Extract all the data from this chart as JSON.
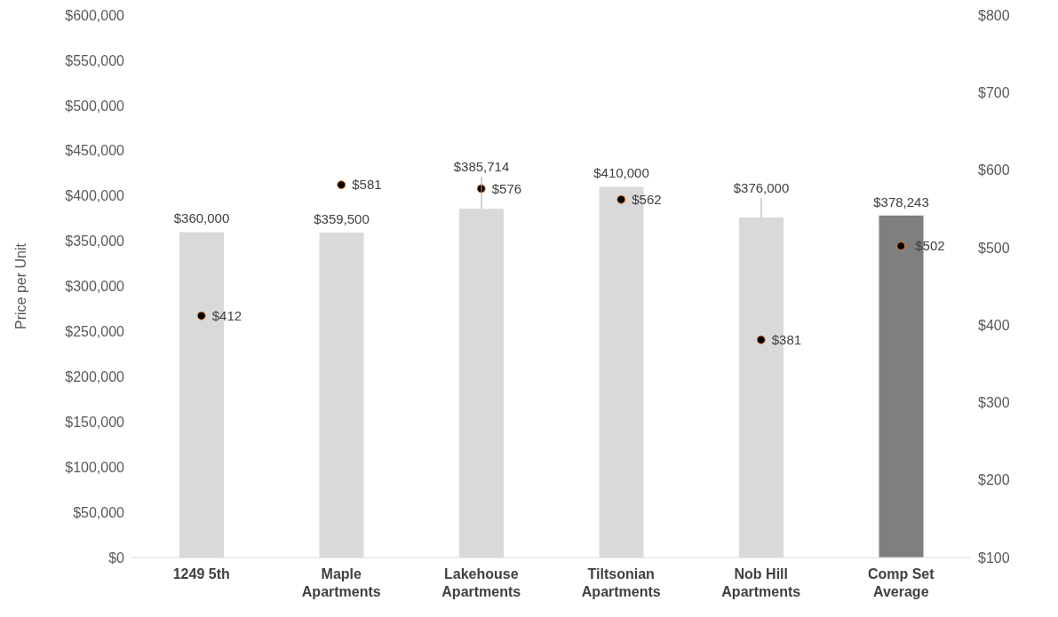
{
  "chart_data": {
    "type": "bar",
    "ylabel": "Price per Unit",
    "categories": [
      "1249 5th",
      "Maple Apartments",
      "Lakehouse Apartments",
      "Tiltsonian Apartments",
      "Nob Hill Apartments",
      "Comp Set Average"
    ],
    "series": [
      {
        "colors": [
          "#d9d9d9",
          "#d9d9d9",
          "#d9d9d9",
          "#d9d9d9",
          "#d9d9d9",
          "#7f7f7f"
        ],
        "values": [
          360000,
          359500,
          385714,
          410000,
          376000,
          378243
        ],
        "value_labels": [
          "$360,000",
          "$359,500",
          "$385,714",
          "$410,000",
          "$376,000",
          "$378,243"
        ]
      },
      {
        "type": "scatter",
        "axis": "y2",
        "color": "#000000",
        "values": [
          412,
          581,
          576,
          562,
          381,
          502
        ],
        "value_labels": [
          "$412",
          "$581",
          "$576",
          "$562",
          "$381",
          "$502"
        ]
      }
    ],
    "ylim": [
      0,
      600000
    ],
    "yticks": [
      {
        "value": 0,
        "label": "$0"
      },
      {
        "value": 50000,
        "label": "$50,000"
      },
      {
        "value": 100000,
        "label": "$100,000"
      },
      {
        "value": 150000,
        "label": "$150,000"
      },
      {
        "value": 200000,
        "label": "$200,000"
      },
      {
        "value": 250000,
        "label": "$250,000"
      },
      {
        "value": 300000,
        "label": "$300,000"
      },
      {
        "value": 350000,
        "label": "$350,000"
      },
      {
        "value": 400000,
        "label": "$400,000"
      },
      {
        "value": 450000,
        "label": "$450,000"
      },
      {
        "value": 500000,
        "label": "$500,000"
      },
      {
        "value": 550000,
        "label": "$550,000"
      },
      {
        "value": 600000,
        "label": "$600,000"
      }
    ],
    "y2lim": [
      100,
      800
    ],
    "y2ticks": [
      {
        "value": 100,
        "label": "$100"
      },
      {
        "value": 200,
        "label": "$200"
      },
      {
        "value": 300,
        "label": "$300"
      },
      {
        "value": 400,
        "label": "$400"
      },
      {
        "value": 500,
        "label": "$500"
      },
      {
        "value": 600,
        "label": "$600"
      },
      {
        "value": 700,
        "label": "$700"
      },
      {
        "value": 800,
        "label": "$800"
      }
    ],
    "marker": "circle",
    "grid": false,
    "legend": false
  }
}
